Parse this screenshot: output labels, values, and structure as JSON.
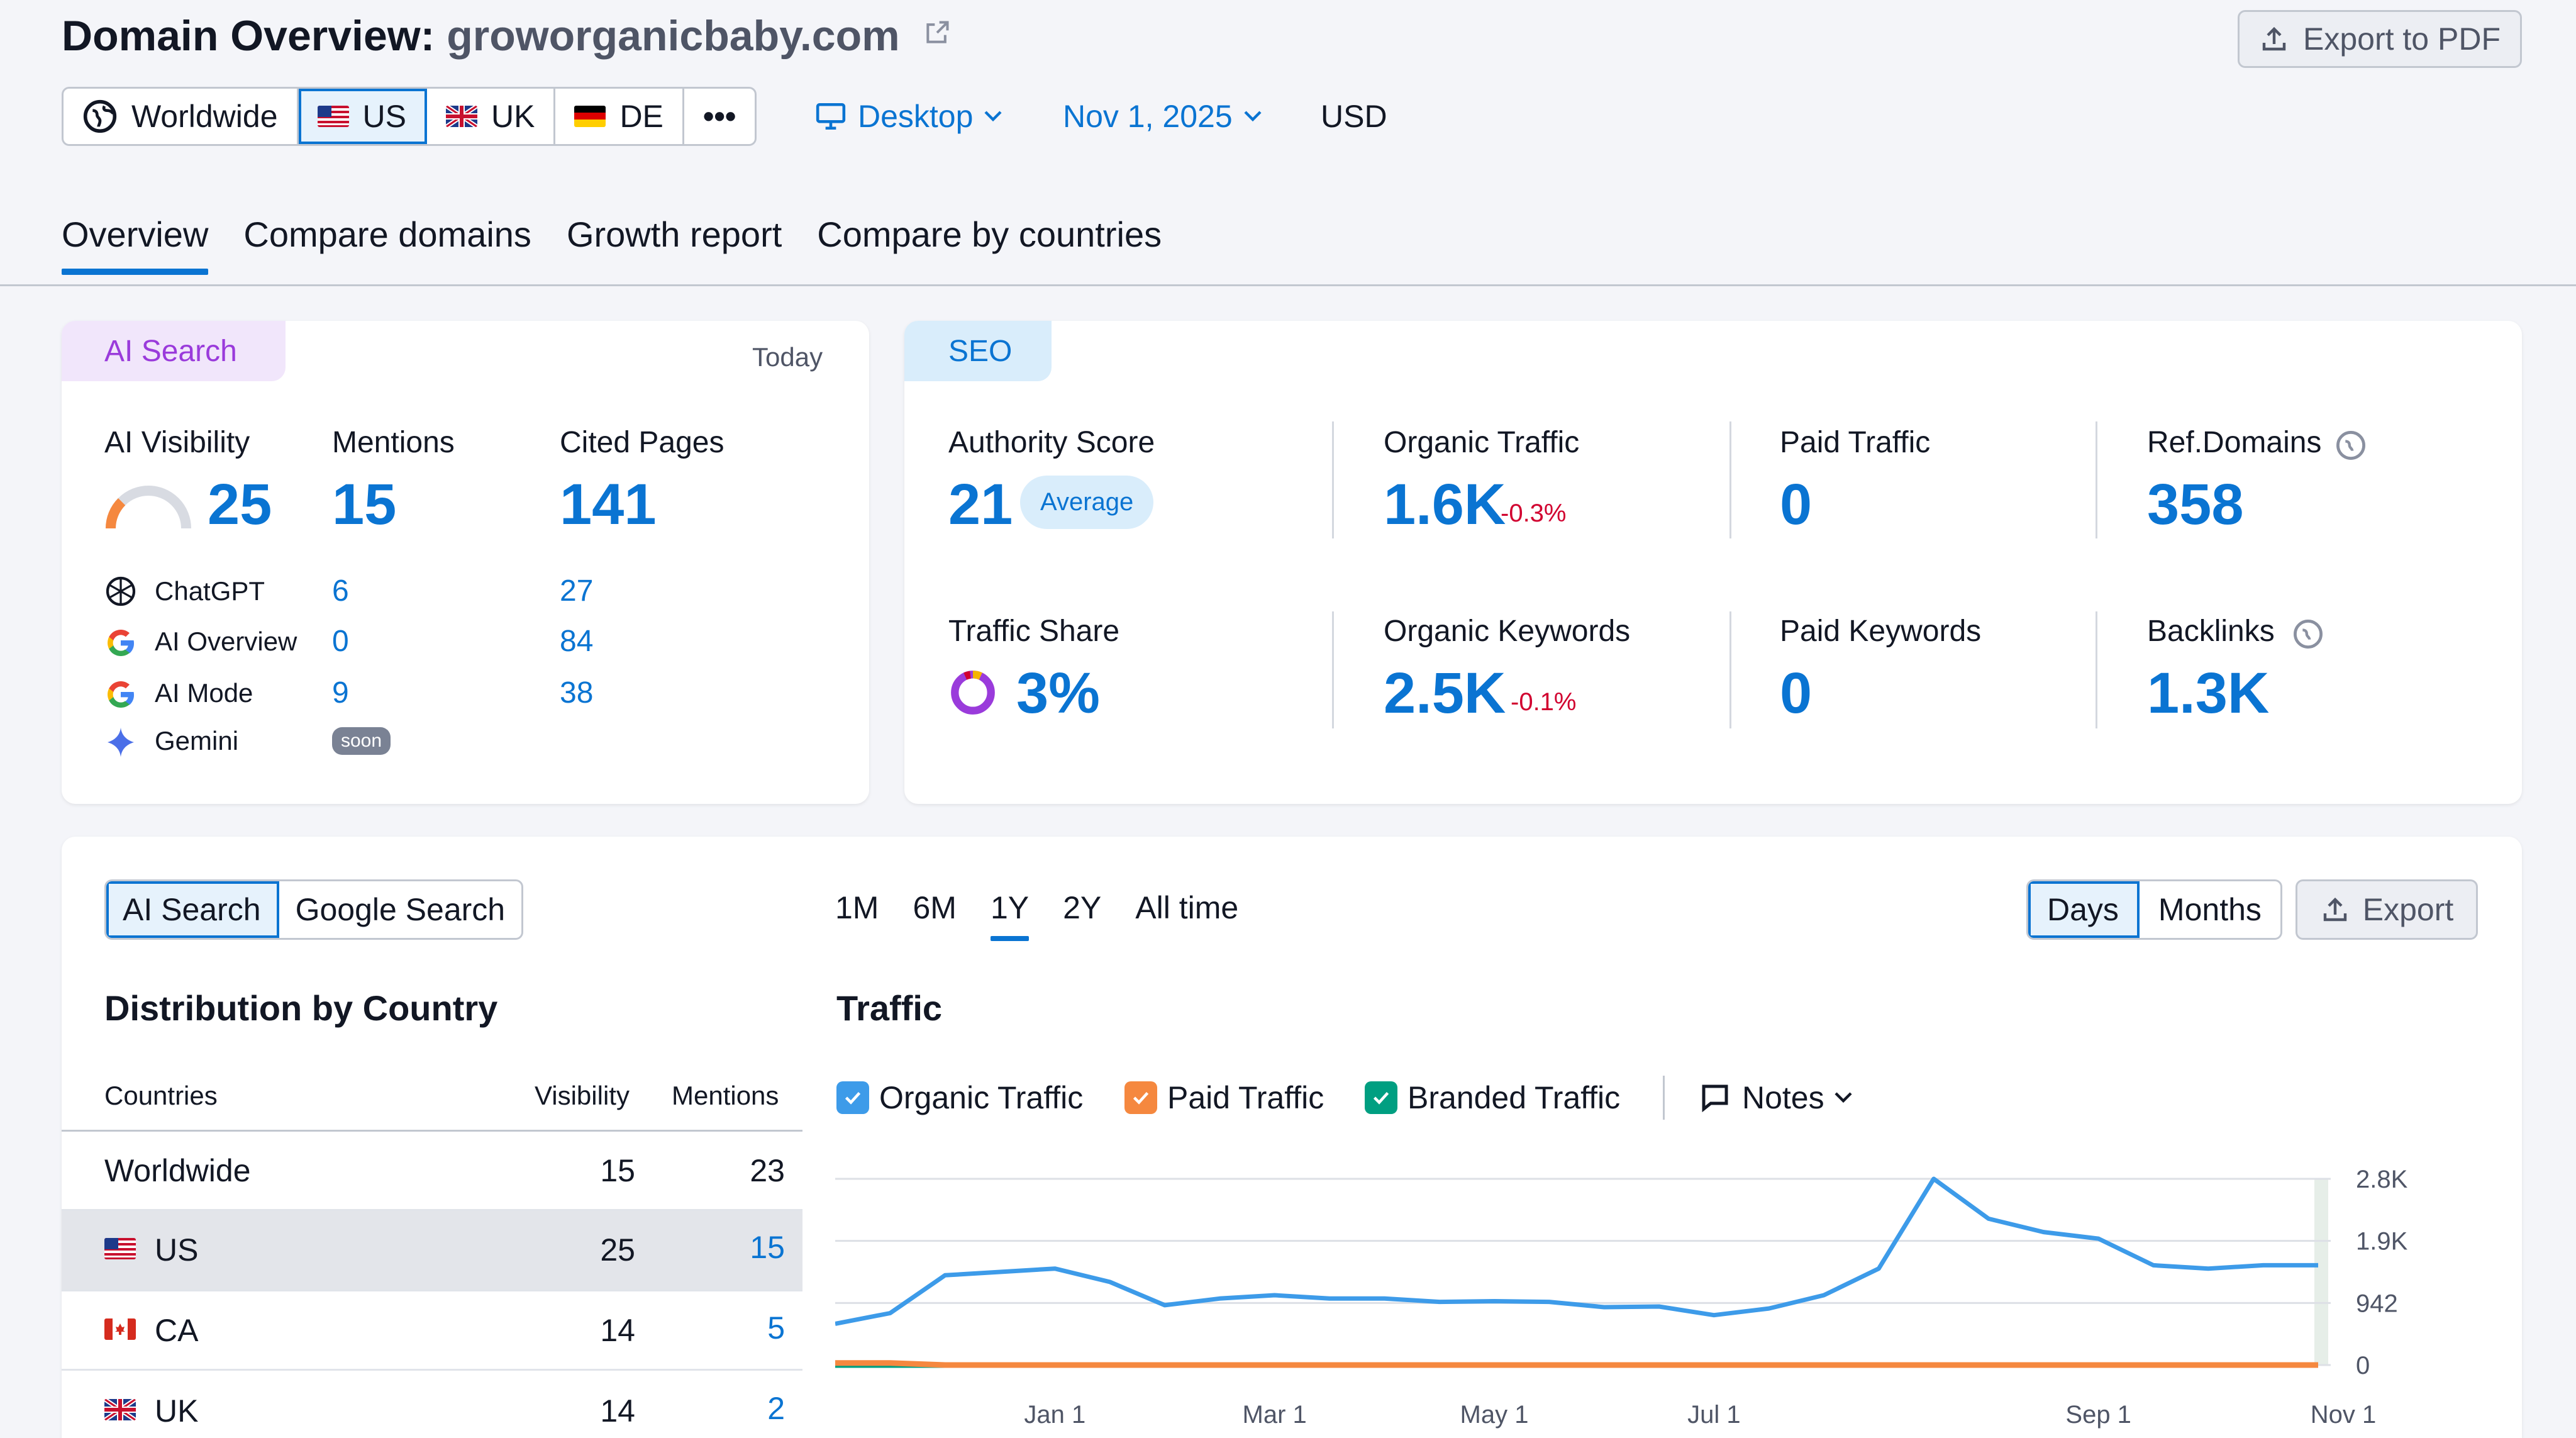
{
  "header": {
    "title_prefix": "Domain Overview:",
    "domain": "groworganicbaby.com",
    "export_pdf": "Export to PDF"
  },
  "databases": [
    {
      "label": "Worldwide",
      "icon": "globe-icon"
    },
    {
      "label": "US",
      "icon": "us-flag-icon"
    },
    {
      "label": "UK",
      "icon": "uk-flag-icon"
    },
    {
      "label": "DE",
      "icon": "de-flag-icon"
    },
    {
      "label": "•••",
      "icon": "more-icon"
    }
  ],
  "filters": {
    "device": "Desktop",
    "date": "Nov 1, 2025",
    "currency": "USD"
  },
  "tabs": [
    "Overview",
    "Compare domains",
    "Growth report",
    "Compare by countries"
  ],
  "ai_search": {
    "pill": "AI Search",
    "today": "Today",
    "headers": {
      "visibility": "AI Visibility",
      "mentions": "Mentions",
      "cited": "Cited Pages"
    },
    "visibility": "25",
    "visibility_fraction": 0.25,
    "mentions": "15",
    "cited": "141",
    "sources": [
      {
        "name": "ChatGPT",
        "mentions": "6",
        "cited": "27",
        "icon": "chatgpt-icon"
      },
      {
        "name": "AI Overview",
        "mentions": "0",
        "cited": "84",
        "icon": "google-icon"
      },
      {
        "name": "AI Mode",
        "mentions": "9",
        "cited": "38",
        "icon": "google-icon"
      },
      {
        "name": "Gemini",
        "mentions": "soon",
        "cited": "",
        "icon": "gemini-icon"
      }
    ]
  },
  "seo": {
    "pill": "SEO",
    "authority_label": "Authority Score",
    "authority": "21",
    "authority_badge": "Average",
    "organic_traffic_label": "Organic Traffic",
    "organic_traffic": "1.6K",
    "organic_traffic_change": "-0.3%",
    "paid_traffic_label": "Paid Traffic",
    "paid_traffic": "0",
    "ref_domains_label": "Ref.Domains",
    "ref_domains": "358",
    "traffic_share_label": "Traffic Share",
    "traffic_share": "3%",
    "organic_keywords_label": "Organic Keywords",
    "organic_keywords": "2.5K",
    "organic_keywords_change": "-0.1%",
    "paid_keywords_label": "Paid Keywords",
    "paid_keywords": "0",
    "backlinks_label": "Backlinks",
    "backlinks": "1.3K"
  },
  "bottom": {
    "segment": [
      "AI Search",
      "Google Search"
    ],
    "ranges": [
      "1M",
      "6M",
      "1Y",
      "2Y",
      "All time"
    ],
    "granularity": [
      "Days",
      "Months"
    ],
    "export": "Export",
    "dist_title": "Distribution by Country",
    "table_headers": {
      "country": "Countries",
      "visibility": "Visibility",
      "mentions": "Mentions"
    },
    "rows": [
      {
        "country": "Worldwide",
        "visibility": "15",
        "mentions": "23",
        "flag": ""
      },
      {
        "country": "US",
        "visibility": "25",
        "mentions": "15",
        "flag": "us"
      },
      {
        "country": "CA",
        "visibility": "14",
        "mentions": "5",
        "flag": "ca"
      },
      {
        "country": "UK",
        "visibility": "14",
        "mentions": "2",
        "flag": "uk"
      }
    ],
    "traffic_title": "Traffic",
    "legend": {
      "organic": "Organic Traffic",
      "paid": "Paid Traffic",
      "branded": "Branded Traffic",
      "notes": "Notes"
    }
  },
  "chart_data": {
    "type": "line",
    "title": "Traffic",
    "xlabel": "",
    "ylabel": "",
    "x_ticks": [
      "Jan 1",
      "Mar 1",
      "May 1",
      "Jul 1",
      "Sep 1",
      "Nov 1"
    ],
    "y_ticks": [
      "2.8K",
      "1.9K",
      "942",
      "0"
    ],
    "ylim": [
      0,
      2800
    ],
    "x": [
      "Nov 1",
      "Nov 15",
      "Dec 1",
      "Dec 15",
      "Jan 1",
      "Jan 15",
      "Feb 1",
      "Feb 15",
      "Mar 1",
      "Mar 15",
      "Apr 1",
      "Apr 15",
      "May 1",
      "May 15",
      "Jun 1",
      "Jun 15",
      "Jul 1",
      "Jul 15",
      "Aug 1",
      "Aug 10",
      "Aug 15",
      "Aug 20",
      "Aug 25",
      "Sep 1",
      "Sep 15",
      "Oct 1",
      "Oct 15",
      "Nov 1"
    ],
    "series": [
      {
        "name": "Organic Traffic",
        "color": "#3d9be9",
        "values": [
          620,
          780,
          1350,
          1400,
          1450,
          1250,
          900,
          1000,
          1050,
          1000,
          1000,
          950,
          960,
          950,
          870,
          880,
          750,
          850,
          1050,
          1450,
          2800,
          2200,
          2000,
          1900,
          1500,
          1450,
          1500,
          1500
        ]
      },
      {
        "name": "Paid Traffic",
        "color": "#f5883f",
        "values": [
          30,
          30,
          0,
          0,
          0,
          0,
          0,
          0,
          0,
          0,
          0,
          0,
          0,
          0,
          0,
          0,
          0,
          0,
          0,
          0,
          0,
          0,
          0,
          0,
          0,
          0,
          0,
          0
        ]
      },
      {
        "name": "Branded Traffic",
        "color": "#009f81",
        "values": [
          0,
          0,
          0,
          0,
          0,
          0,
          0,
          0,
          0,
          0,
          0,
          0,
          0,
          0,
          0,
          0,
          0,
          0,
          0,
          0,
          0,
          0,
          0,
          0,
          0,
          0,
          0,
          0
        ]
      }
    ]
  }
}
